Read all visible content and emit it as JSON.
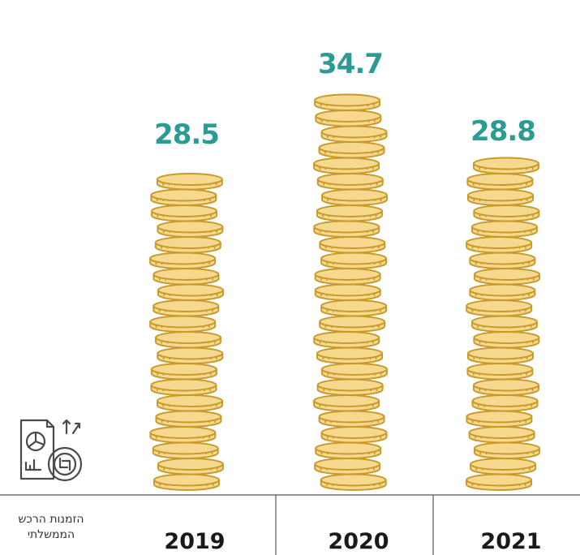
{
  "chart_data": {
    "type": "bar",
    "categories": [
      "2019",
      "2020",
      "2021"
    ],
    "values": [
      28.5,
      34.7,
      28.8
    ],
    "value_labels": [
      "28.5",
      "34.7",
      "28.8"
    ],
    "ylim": [
      0,
      38
    ],
    "mark_style": "coin-stacks",
    "grid": false
  },
  "caption": {
    "line1": "הזמנות הרכש",
    "line2": "הממשלתי"
  },
  "icons": {
    "report": "report-with-shekel-coin-icon"
  },
  "colors": {
    "coin_fill": "#f6d98f",
    "coin_stroke": "#c79a2a",
    "value_label": "#2b9b93",
    "axis": "#555555",
    "year_text": "#1a1a1a",
    "icon_stroke": "#4a4a4a"
  }
}
